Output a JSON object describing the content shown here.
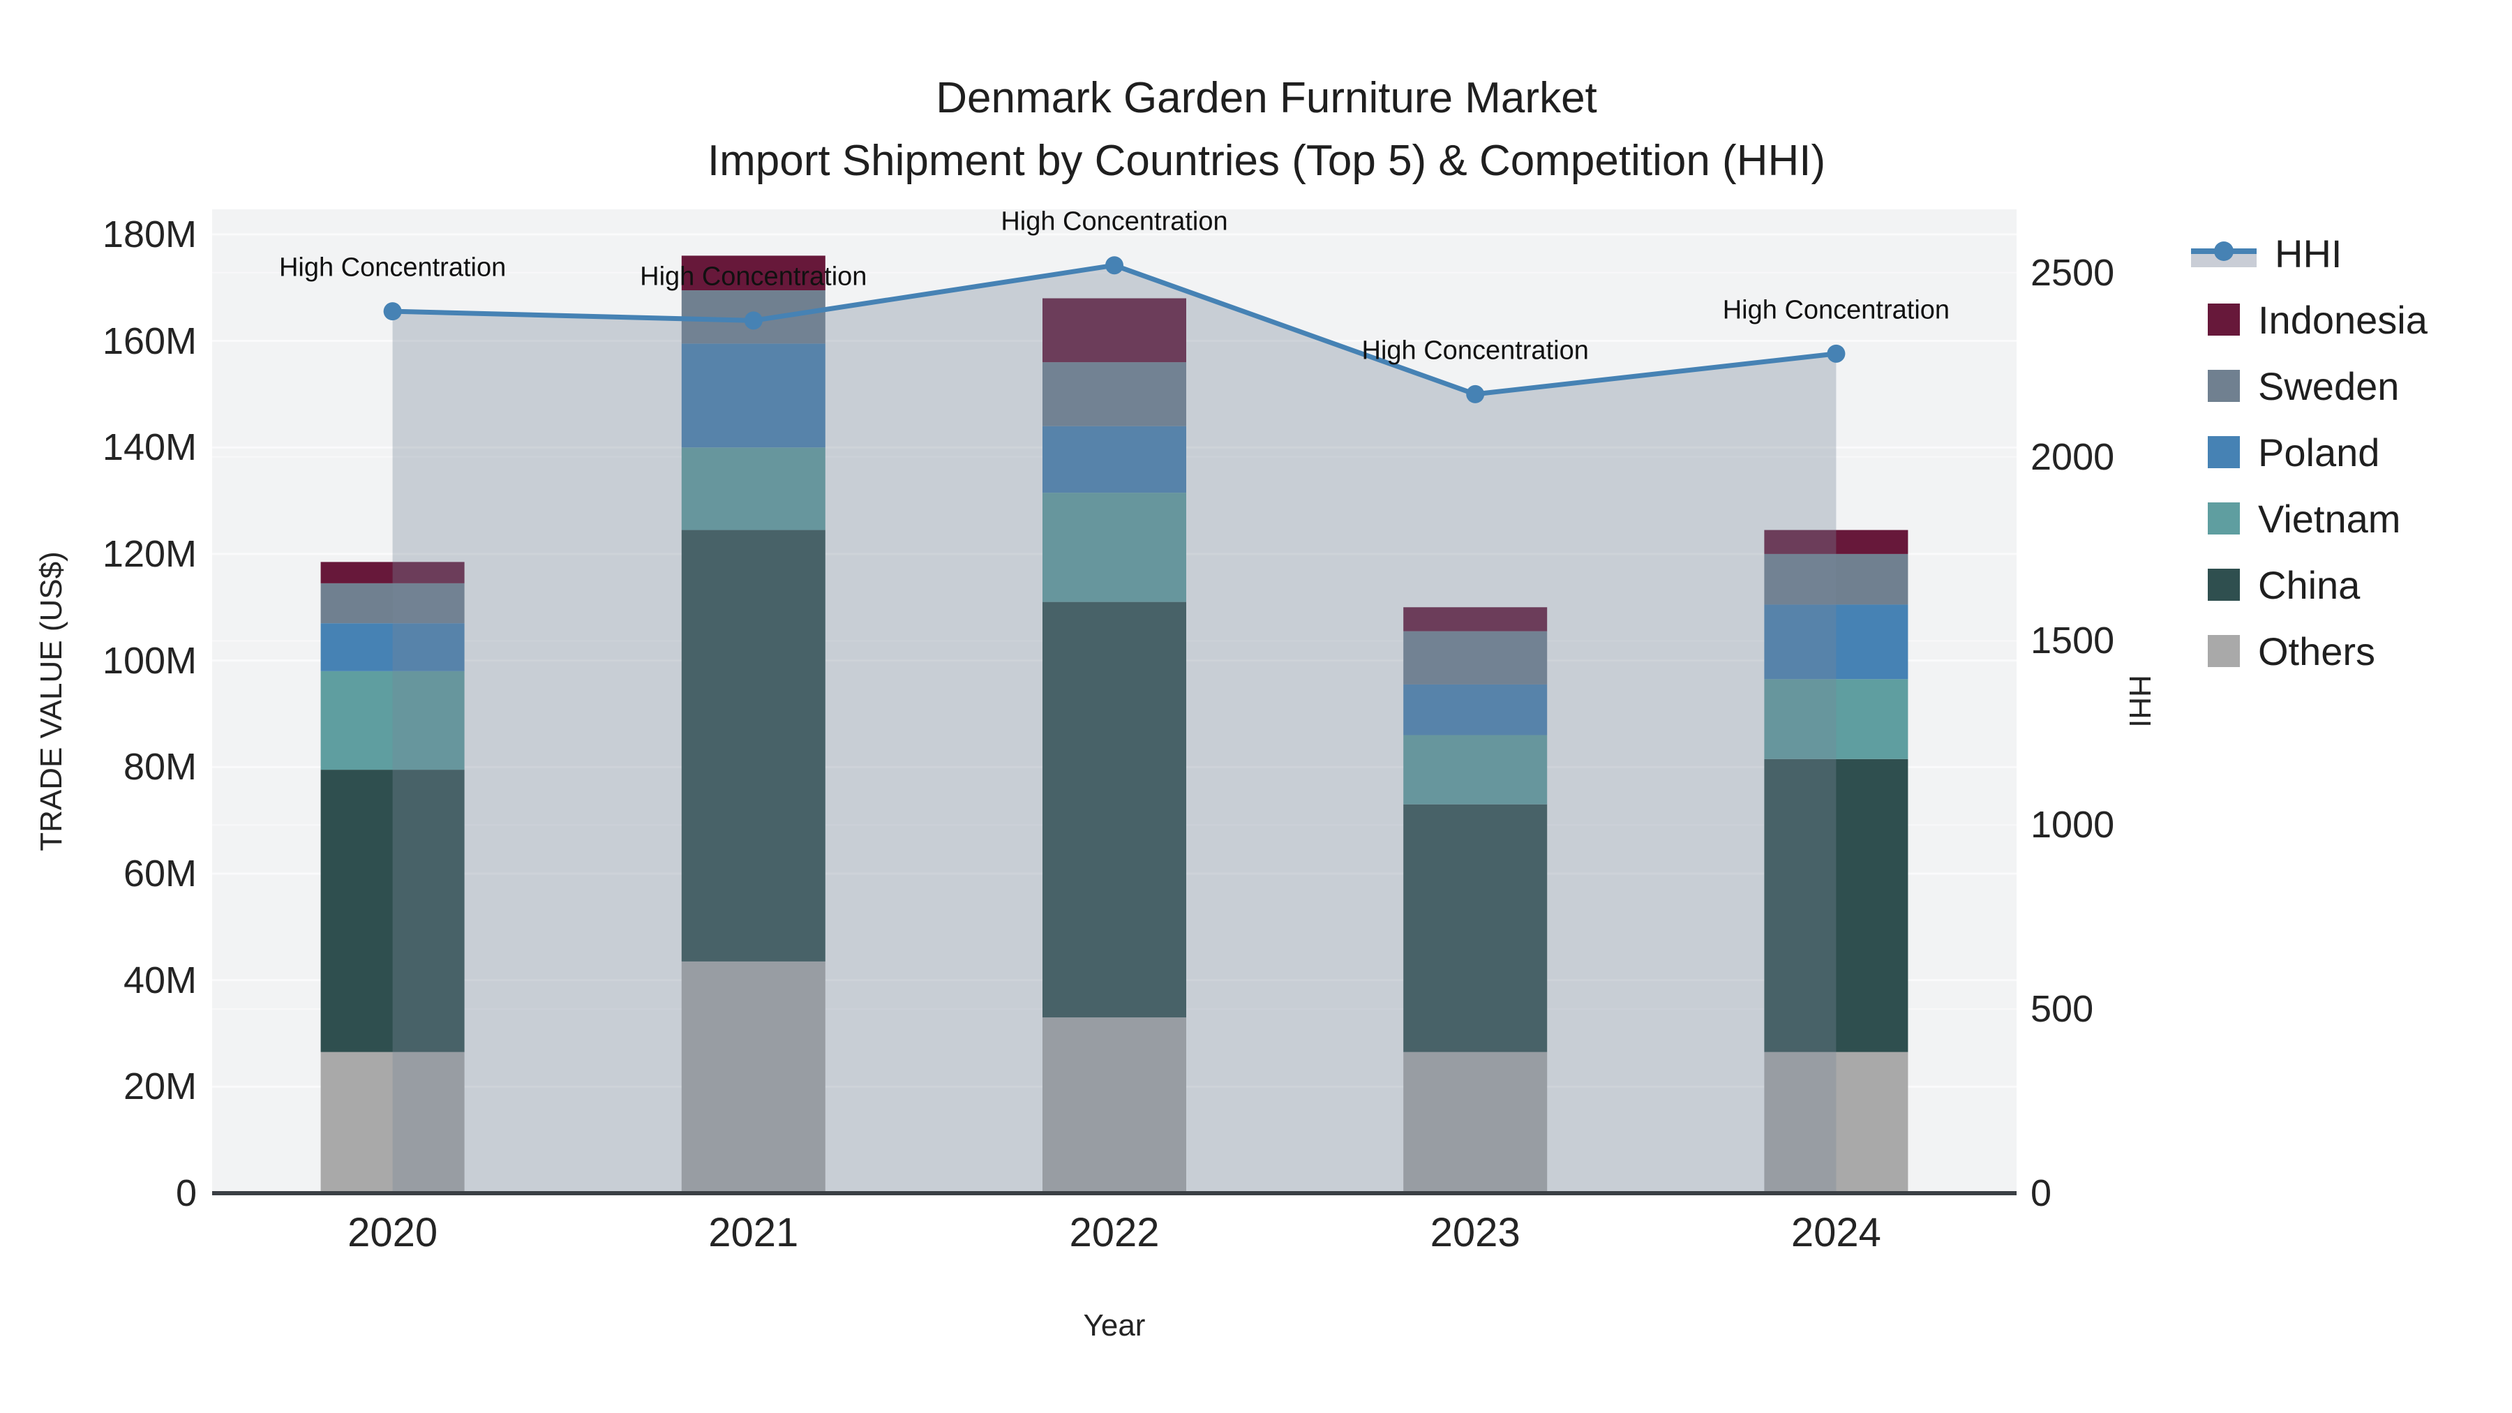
{
  "title": {
    "line1": "Denmark Garden Furniture Market",
    "line2": "Import Shipment by Countries (Top 5) & Competition (HHI)"
  },
  "chart_data": {
    "type": "combo-stacked-bar-line",
    "categories": [
      "2020",
      "2021",
      "2022",
      "2023",
      "2024"
    ],
    "bar_series": [
      {
        "name": "Others",
        "color": "#A9A9A9",
        "values": [
          26.5,
          43.5,
          33.0,
          26.5,
          26.5
        ]
      },
      {
        "name": "China",
        "color": "#2F4F4F",
        "values": [
          53.0,
          81.0,
          78.0,
          46.5,
          55.0
        ]
      },
      {
        "name": "Vietnam",
        "color": "#5F9EA0",
        "values": [
          18.5,
          15.5,
          20.5,
          13.0,
          15.0
        ]
      },
      {
        "name": "Poland",
        "color": "#4682B4",
        "values": [
          9.0,
          19.5,
          12.5,
          9.5,
          14.0
        ]
      },
      {
        "name": "Sweden",
        "color": "#708090",
        "values": [
          7.5,
          10.0,
          12.0,
          10.0,
          9.5
        ]
      },
      {
        "name": "Indonesia",
        "color": "#67183A",
        "values": [
          4.0,
          6.5,
          12.0,
          4.5,
          4.5
        ]
      }
    ],
    "bar_totals": [
      118.5,
      176.0,
      168.0,
      110.0,
      124.5
    ],
    "line_series": {
      "name": "HHI",
      "color": "#4682B4",
      "area_fill": "rgba(119,136,153,0.34)",
      "values": [
        2395,
        2370,
        2520,
        2170,
        2280
      ]
    },
    "annotations": [
      {
        "text": "High Concentration",
        "point": 0
      },
      {
        "text": "High Concentration",
        "point": 1
      },
      {
        "text": "High Concentration",
        "point": 2
      },
      {
        "text": "High Concentration",
        "point": 3
      },
      {
        "text": "High Concentration",
        "point": 4
      }
    ],
    "y_left": {
      "title": "TRADE VALUE (US$)",
      "ticks": [
        0,
        20,
        40,
        60,
        80,
        100,
        120,
        140,
        160,
        180
      ],
      "tick_labels": [
        "0",
        "20M",
        "40M",
        "60M",
        "80M",
        "100M",
        "120M",
        "140M",
        "160M",
        "180M"
      ],
      "range": [
        0,
        184.7
      ]
    },
    "y_right": {
      "title": "HHI",
      "ticks": [
        0,
        500,
        1000,
        1500,
        2000,
        2500
      ],
      "tick_labels": [
        "0",
        "500",
        "1000",
        "1500",
        "2000",
        "2500"
      ],
      "range": [
        0,
        2672
      ]
    },
    "x_axis": {
      "title": "Year"
    },
    "grid": {
      "on": true,
      "color": "#FAFAFB",
      "plot_bg": "#F2F3F4",
      "baseline_color": "#3A3F44"
    }
  },
  "legend": [
    {
      "name": "HHI",
      "type": "line",
      "color": "#4682B4",
      "band": "#C9CDD6"
    },
    {
      "name": "Indonesia",
      "type": "square",
      "color": "#67183A"
    },
    {
      "name": "Sweden",
      "type": "square",
      "color": "#708090"
    },
    {
      "name": "Poland",
      "type": "square",
      "color": "#4682B4"
    },
    {
      "name": "Vietnam",
      "type": "square",
      "color": "#5F9EA0"
    },
    {
      "name": "China",
      "type": "square",
      "color": "#2F4F4F"
    },
    {
      "name": "Others",
      "type": "square",
      "color": "#A9A9A9"
    }
  ]
}
